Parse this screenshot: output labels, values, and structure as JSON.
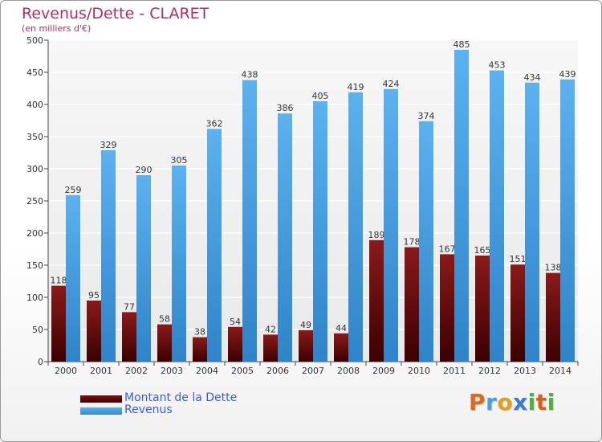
{
  "chart_data": {
    "type": "bar",
    "title": "Revenus/Dette - CLARET",
    "subtitle": "(en milliers d'€)",
    "categories": [
      "2000",
      "2001",
      "2002",
      "2003",
      "2004",
      "2005",
      "2006",
      "2007",
      "2008",
      "2009",
      "2010",
      "2011",
      "2012",
      "2013",
      "2014"
    ],
    "series": [
      {
        "name": "Montant de la Dette",
        "color": "#7a1212",
        "values": [
          118,
          95,
          77,
          58,
          38,
          54,
          42,
          49,
          44,
          189,
          178,
          167,
          165,
          151,
          138
        ]
      },
      {
        "name": "Revenus",
        "color": "#4aa3e6",
        "values": [
          259,
          329,
          290,
          305,
          362,
          438,
          386,
          405,
          419,
          424,
          374,
          485,
          453,
          434,
          439
        ]
      }
    ],
    "ylim": [
      0,
      500
    ],
    "yticks": [
      0,
      50,
      100,
      150,
      200,
      250,
      300,
      350,
      400,
      450,
      500
    ],
    "grid": true,
    "legend_position": "bottom-left"
  },
  "logo": {
    "letters": [
      "P",
      "r",
      "o",
      "x",
      "i",
      "t",
      "i"
    ],
    "colors": [
      "#e06a1a",
      "#4aa0dc",
      "#e0a020",
      "#3a7ad0",
      "#50b040",
      "#e05a1a",
      "#50b040"
    ]
  }
}
